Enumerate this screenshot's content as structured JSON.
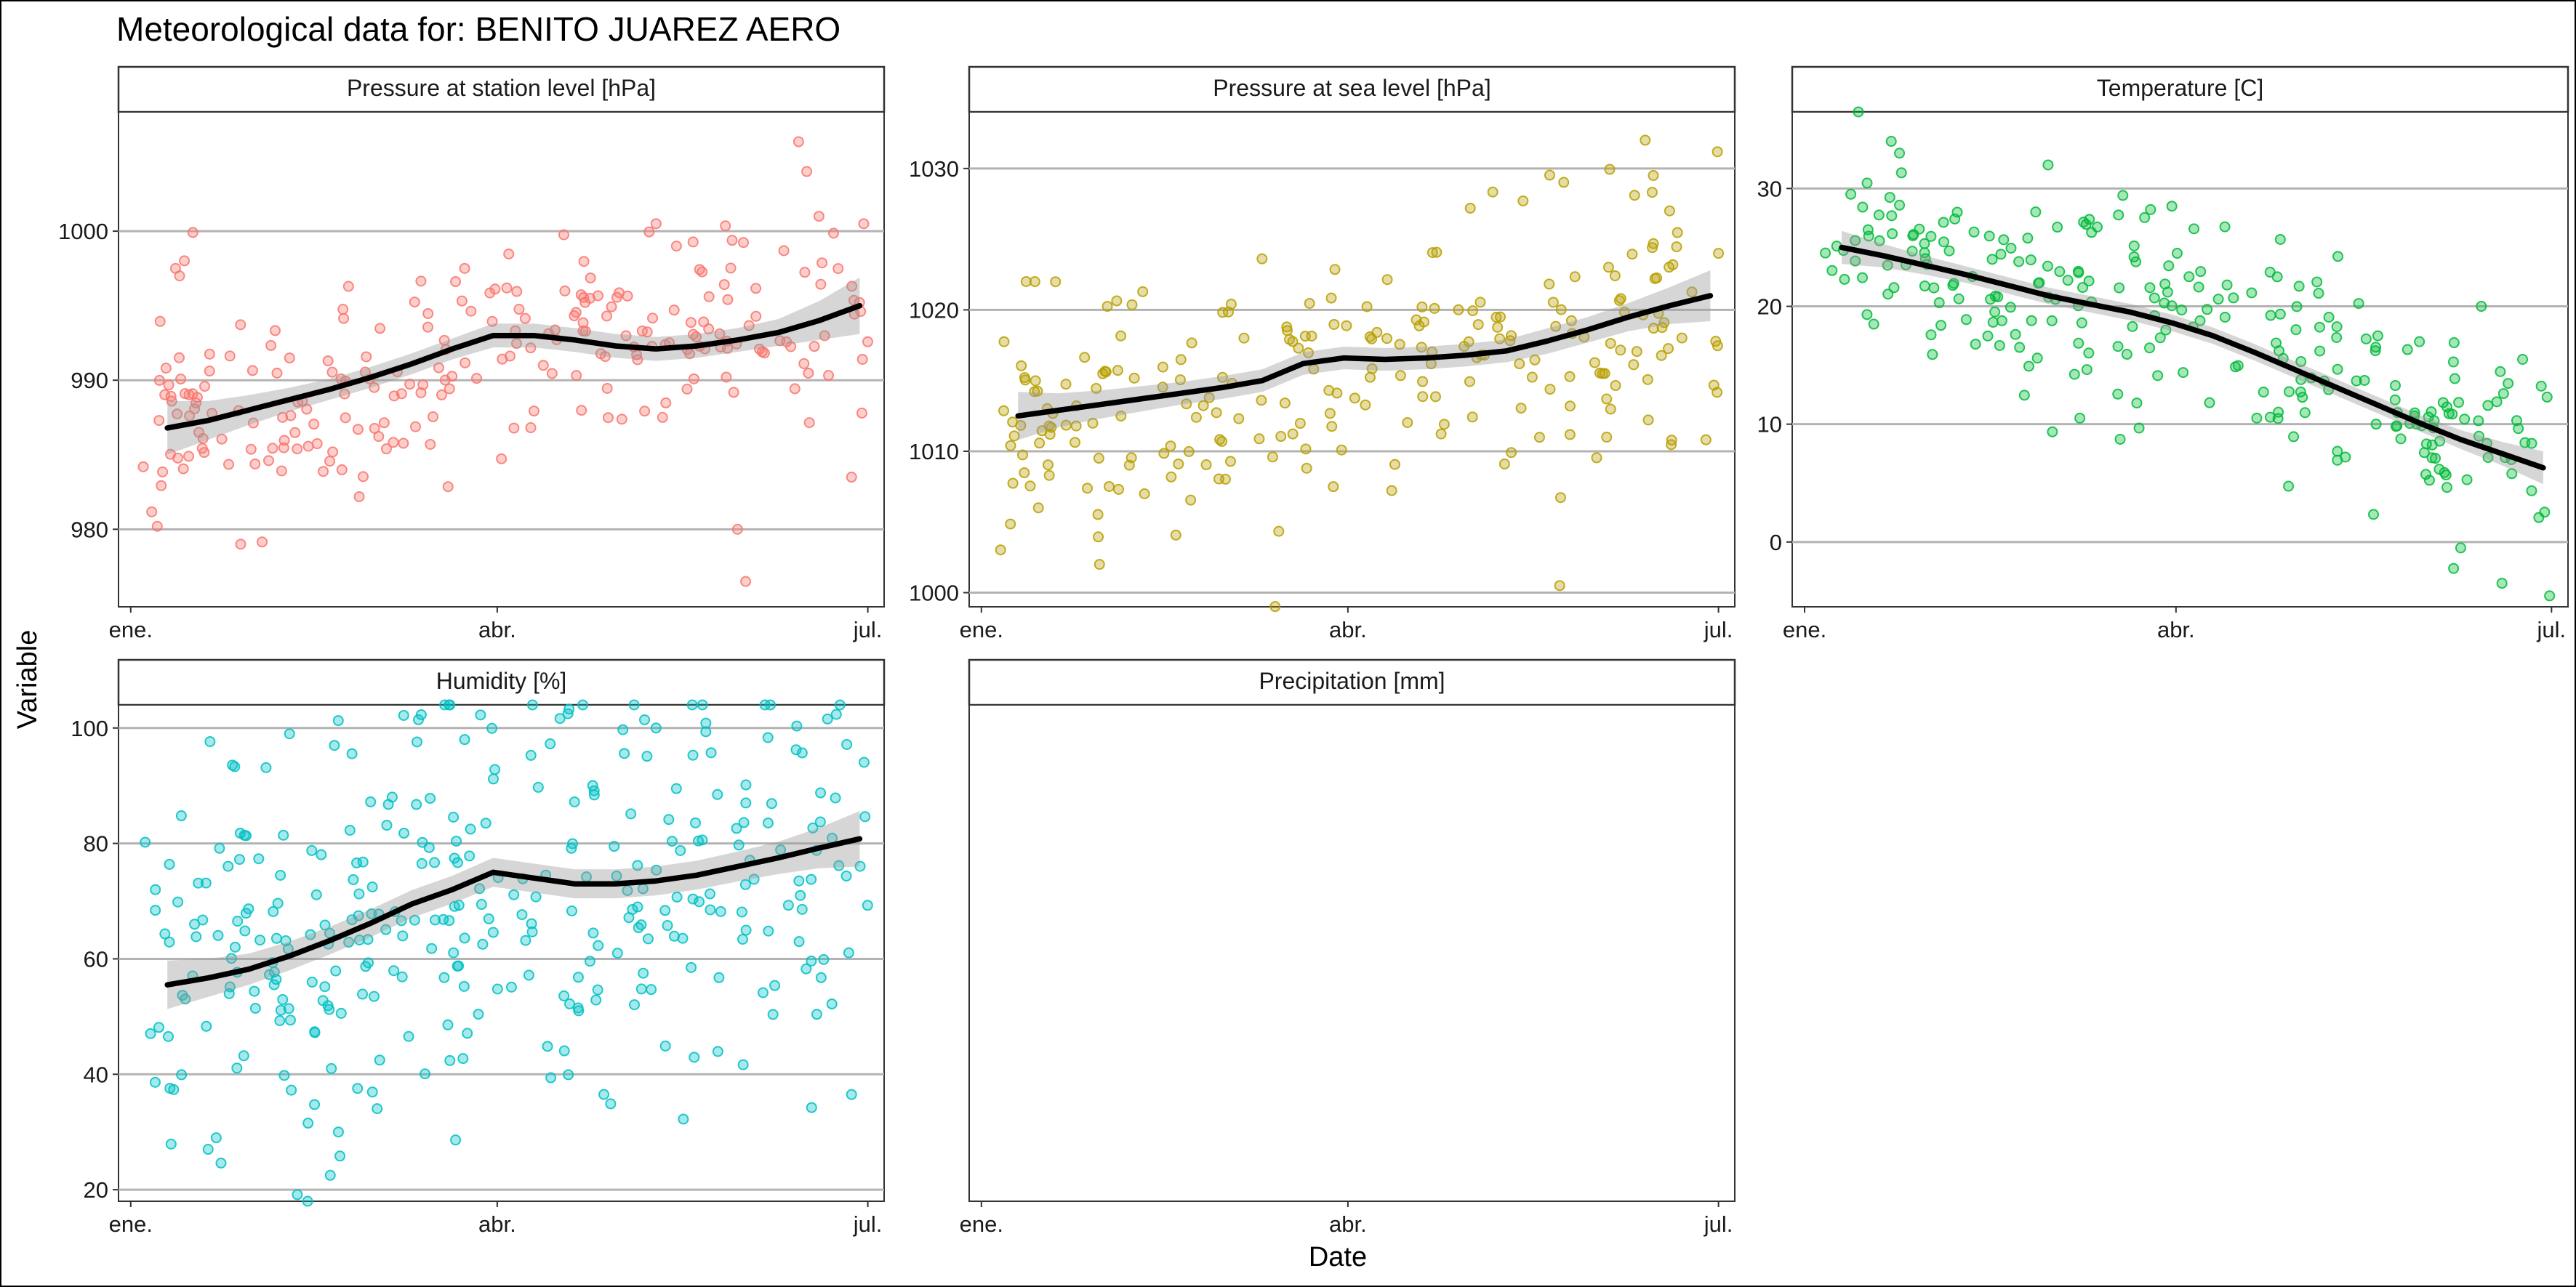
{
  "title": "Meteorological data for: BENITO JUAREZ AERO",
  "xlabel": "Date",
  "ylabel": "Variable",
  "x_tick_labels": [
    "ene.",
    "abr.",
    "jul."
  ],
  "chart_data": [
    {
      "type": "scatter",
      "title": "Pressure at station level [hPa]",
      "color": "#F8766D",
      "x_axis": {
        "unit": "day of year",
        "range": [
          -2,
          186
        ],
        "ticks": [
          1,
          91,
          182
        ],
        "tick_labels": [
          "ene.",
          "abr.",
          "jul."
        ]
      },
      "ylim": [
        974.8,
        1008.0
      ],
      "yticks": [
        980,
        990,
        1000
      ],
      "smooth": {
        "x": [
          10,
          20,
          30,
          40,
          50,
          60,
          70,
          80,
          90,
          100,
          110,
          120,
          130,
          140,
          150,
          160,
          170,
          180
        ],
        "y": [
          986.8,
          987.3,
          988.0,
          988.7,
          989.4,
          990.2,
          991.1,
          992.1,
          993.0,
          993.0,
          992.7,
          992.3,
          992.1,
          992.3,
          992.7,
          993.2,
          994.0,
          995.0
        ],
        "band": [
          1.8,
          1.3,
          1.0,
          0.8,
          0.7,
          0.7,
          0.7,
          0.7,
          0.8,
          0.8,
          0.8,
          0.8,
          0.8,
          0.8,
          0.8,
          0.9,
          1.3,
          1.9
        ]
      },
      "points": {
        "n": 240,
        "seed": 11,
        "noise": 3.6,
        "outliers": [
          [
            12,
            997.5
          ],
          [
            13,
            997.0
          ],
          [
            28,
            979.0
          ],
          [
            83,
            997.5
          ],
          [
            130,
            1000.5
          ],
          [
            135,
            999.0
          ],
          [
            150,
            980.0
          ],
          [
            152,
            976.5
          ],
          [
            165,
            1006.0
          ],
          [
            167,
            1004.0
          ],
          [
            170,
            1001.0
          ],
          [
            178,
            983.5
          ],
          [
            181,
            1000.5
          ]
        ]
      }
    },
    {
      "type": "scatter",
      "title": "Pressure at sea level [hPa]",
      "color": "#B79F00",
      "x_axis": {
        "unit": "day of year",
        "range": [
          -2,
          186
        ],
        "ticks": [
          1,
          91,
          182
        ],
        "tick_labels": [
          "ene.",
          "abr.",
          "jul."
        ]
      },
      "ylim": [
        999.0,
        1034.0
      ],
      "yticks": [
        1000,
        1010,
        1020,
        1030
      ],
      "smooth": {
        "x": [
          10,
          20,
          30,
          40,
          50,
          60,
          70,
          80,
          90,
          100,
          110,
          120,
          130,
          140,
          150,
          160,
          170,
          180
        ],
        "y": [
          1012.5,
          1012.9,
          1013.3,
          1013.7,
          1014.1,
          1014.5,
          1015.0,
          1016.2,
          1016.6,
          1016.5,
          1016.6,
          1016.8,
          1017.1,
          1017.8,
          1018.6,
          1019.5,
          1020.3,
          1021.0
        ],
        "band": [
          1.7,
          1.2,
          1.0,
          0.9,
          0.8,
          0.8,
          0.8,
          0.8,
          0.8,
          0.8,
          0.8,
          0.8,
          0.8,
          0.9,
          0.9,
          1.0,
          1.3,
          1.8
        ]
      },
      "points": {
        "n": 240,
        "seed": 23,
        "noise": 4.5,
        "outliers": [
          [
            12,
            1022.0
          ],
          [
            15,
            1006.0
          ],
          [
            30,
            1002.0
          ],
          [
            143,
            1000.5
          ],
          [
            164,
            1032.0
          ],
          [
            166,
            1029.5
          ],
          [
            170,
            1027.0
          ],
          [
            182,
            1024.0
          ]
        ]
      }
    },
    {
      "type": "scatter",
      "title": "Temperature [C]",
      "color": "#00BA38",
      "x_axis": {
        "unit": "day of year",
        "range": [
          -2,
          186
        ],
        "ticks": [
          1,
          91,
          182
        ],
        "tick_labels": [
          "ene.",
          "abr.",
          "jul."
        ]
      },
      "ylim": [
        -5.5,
        36.5
      ],
      "yticks": [
        0,
        10,
        20,
        30
      ],
      "smooth": {
        "x": [
          10,
          20,
          30,
          40,
          50,
          60,
          70,
          80,
          90,
          100,
          110,
          120,
          130,
          140,
          150,
          160,
          170,
          180
        ],
        "y": [
          25.0,
          24.3,
          23.5,
          22.7,
          21.8,
          20.9,
          20.2,
          19.5,
          18.6,
          17.5,
          16.1,
          14.6,
          13.1,
          11.6,
          10.1,
          8.7,
          7.5,
          6.3
        ],
        "band": [
          1.4,
          1.0,
          0.8,
          0.7,
          0.7,
          0.7,
          0.7,
          0.7,
          0.7,
          0.7,
          0.7,
          0.7,
          0.7,
          0.7,
          0.7,
          0.8,
          1.0,
          1.4
        ]
      },
      "points": {
        "n": 260,
        "seed": 37,
        "noise": 4.6,
        "outliers": [
          [
            22,
            34.0
          ],
          [
            24,
            33.0
          ],
          [
            60,
            32.0
          ],
          [
            90,
            28.5
          ],
          [
            150,
            17.0
          ],
          [
            165,
            20.0
          ],
          [
            170,
            -3.5
          ],
          [
            175,
            15.5
          ],
          [
            160,
            -0.5
          ]
        ]
      }
    },
    {
      "type": "scatter",
      "title": "Humidity [%]",
      "color": "#00BFC4",
      "x_axis": {
        "unit": "day of year",
        "range": [
          -2,
          186
        ],
        "ticks": [
          1,
          91,
          182
        ],
        "tick_labels": [
          "ene.",
          "abr.",
          "jul."
        ]
      },
      "ylim": [
        18.0,
        104.0
      ],
      "yticks": [
        20,
        40,
        60,
        80,
        100
      ],
      "smooth": {
        "x": [
          10,
          20,
          30,
          40,
          50,
          60,
          70,
          80,
          90,
          100,
          110,
          120,
          130,
          140,
          150,
          160,
          170,
          180
        ],
        "y": [
          55.5,
          56.7,
          58.2,
          60.5,
          63.2,
          66.2,
          69.5,
          72.0,
          75.0,
          74.0,
          73.0,
          73.0,
          73.5,
          74.5,
          76.0,
          77.5,
          79.2,
          80.8
        ],
        "band": [
          4.2,
          3.3,
          2.7,
          2.5,
          2.4,
          2.4,
          2.4,
          2.4,
          2.5,
          2.5,
          2.5,
          2.5,
          2.5,
          2.5,
          2.6,
          2.8,
          3.5,
          4.8
        ]
      },
      "points": {
        "n": 330,
        "seed": 51,
        "noise": 18.0,
        "outliers": [
          [
            20,
            27.0
          ],
          [
            22,
            29.0
          ],
          [
            40,
            99.0
          ],
          [
            50,
            22.5
          ],
          [
            52,
            30.0
          ],
          [
            178,
            36.5
          ],
          [
            83,
            98.0
          ],
          [
            130,
            100.0
          ]
        ]
      }
    },
    {
      "type": "scatter",
      "title": "Precipitation [mm]",
      "color": "#619CFF",
      "x_axis": {
        "unit": "day of year",
        "range": [
          -2,
          186
        ],
        "ticks": [
          1,
          91,
          182
        ],
        "tick_labels": [
          "ene.",
          "abr.",
          "jul."
        ]
      },
      "ylim": [
        0,
        1
      ],
      "yticks": [],
      "smooth": null,
      "points": null
    }
  ]
}
